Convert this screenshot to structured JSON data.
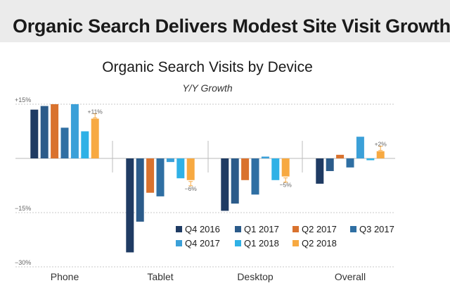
{
  "banner": {
    "title": "Organic Search Delivers Modest Site Visit Growth"
  },
  "chart_data": {
    "type": "bar",
    "title": "Organic Search Visits by Device",
    "subtitle": "Y/Y Growth",
    "xlabel": "",
    "ylabel": "",
    "ylim": [
      -30,
      15
    ],
    "y_ticks": [
      {
        "value": 15,
        "label": "+15%"
      },
      {
        "value": -15,
        "label": "−15%"
      },
      {
        "value": -30,
        "label": "−30%"
      }
    ],
    "grid": true,
    "legend_position": "bottom-right",
    "categories": [
      "Phone",
      "Tablet",
      "Desktop",
      "Overall"
    ],
    "series": [
      {
        "name": "Q4 2016",
        "color": "#1f3b63",
        "values": [
          13.5,
          -26,
          -14.5,
          -7
        ]
      },
      {
        "name": "Q1 2017",
        "color": "#2b5b8a",
        "values": [
          14.5,
          -17.5,
          -12.5,
          -3.5
        ]
      },
      {
        "name": "Q2 2017",
        "color": "#d9722e",
        "values": [
          15,
          -9.5,
          -6,
          1
        ]
      },
      {
        "name": "Q3 2017",
        "color": "#2f6fa3",
        "values": [
          8.5,
          -10.5,
          -10,
          -2.5
        ]
      },
      {
        "name": "Q4 2017",
        "color": "#3ba0d8",
        "values": [
          15,
          -1,
          0.5,
          6
        ]
      },
      {
        "name": "Q1 2018",
        "color": "#2fb1e6",
        "values": [
          7.5,
          -5.5,
          -6,
          -0.5
        ]
      },
      {
        "name": "Q2 2018",
        "color": "#f7a941",
        "values": [
          11,
          -6,
          -5,
          2
        ]
      }
    ],
    "annotations": [
      {
        "category": "Phone",
        "series": "Q2 2018",
        "label": "+11%"
      },
      {
        "category": "Tablet",
        "series": "Q2 2018",
        "label": "−6%"
      },
      {
        "category": "Desktop",
        "series": "Q2 2018",
        "label": "−5%"
      },
      {
        "category": "Overall",
        "series": "Q2 2018",
        "label": "+2%"
      }
    ]
  }
}
